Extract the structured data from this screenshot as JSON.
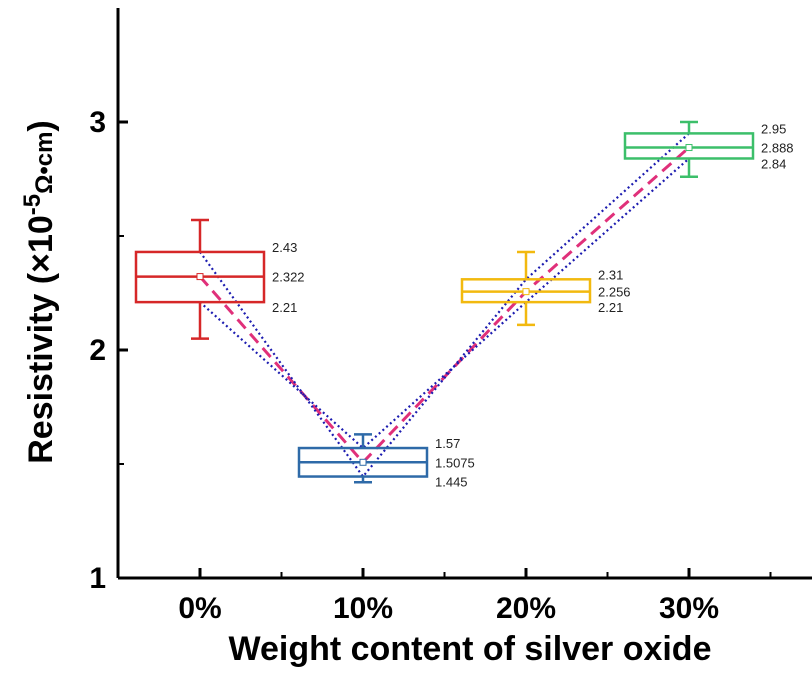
{
  "chart_data": {
    "type": "box",
    "xlabel": "Weight content of silver oxide",
    "ylabel": {
      "prefix": "Resistivity (×10",
      "exponent": "-5",
      "unit": "Ω•cm",
      "suffix": ")"
    },
    "ylim": [
      1,
      3.5
    ],
    "yticks": [
      "1",
      "2",
      "3"
    ],
    "categories": [
      "0%",
      "10%",
      "20%",
      "30%"
    ],
    "boxes": [
      {
        "category": "0%",
        "color": "#d62728",
        "q1": 2.21,
        "median": 2.322,
        "q3": 2.43,
        "whisker_low": 2.05,
        "whisker_high": 2.57,
        "mean": 2.322,
        "labels": [
          "2.43",
          "2.322",
          "2.21"
        ]
      },
      {
        "category": "10%",
        "color": "#2e6aa8",
        "q1": 1.445,
        "median": 1.5075,
        "q3": 1.57,
        "whisker_low": 1.42,
        "whisker_high": 1.63,
        "mean": 1.5075,
        "labels": [
          "1.57",
          "1.5075",
          "1.445"
        ]
      },
      {
        "category": "20%",
        "color": "#f2b90f",
        "q1": 2.21,
        "median": 2.256,
        "q3": 2.31,
        "whisker_low": 2.11,
        "whisker_high": 2.43,
        "mean": 2.256,
        "labels": [
          "2.31",
          "2.256",
          "2.21"
        ]
      },
      {
        "category": "30%",
        "color": "#3cbf6a",
        "q1": 2.84,
        "median": 2.888,
        "q3": 2.95,
        "whisker_low": 2.76,
        "whisker_high": 3.0,
        "mean": 2.888,
        "labels": [
          "2.95",
          "2.888",
          "2.84"
        ]
      }
    ],
    "trend_lines": [
      {
        "style": "dashed",
        "color": "#e0307a",
        "values": [
          2.322,
          1.5075,
          2.256,
          2.888
        ]
      },
      {
        "style": "dotted",
        "color": "#1c1cb0",
        "values": [
          2.43,
          1.445,
          2.31,
          2.95
        ]
      },
      {
        "style": "dotted",
        "color": "#1c1cb0",
        "values": [
          2.21,
          1.57,
          2.21,
          2.84
        ]
      }
    ],
    "grid": false,
    "legend": "none"
  }
}
